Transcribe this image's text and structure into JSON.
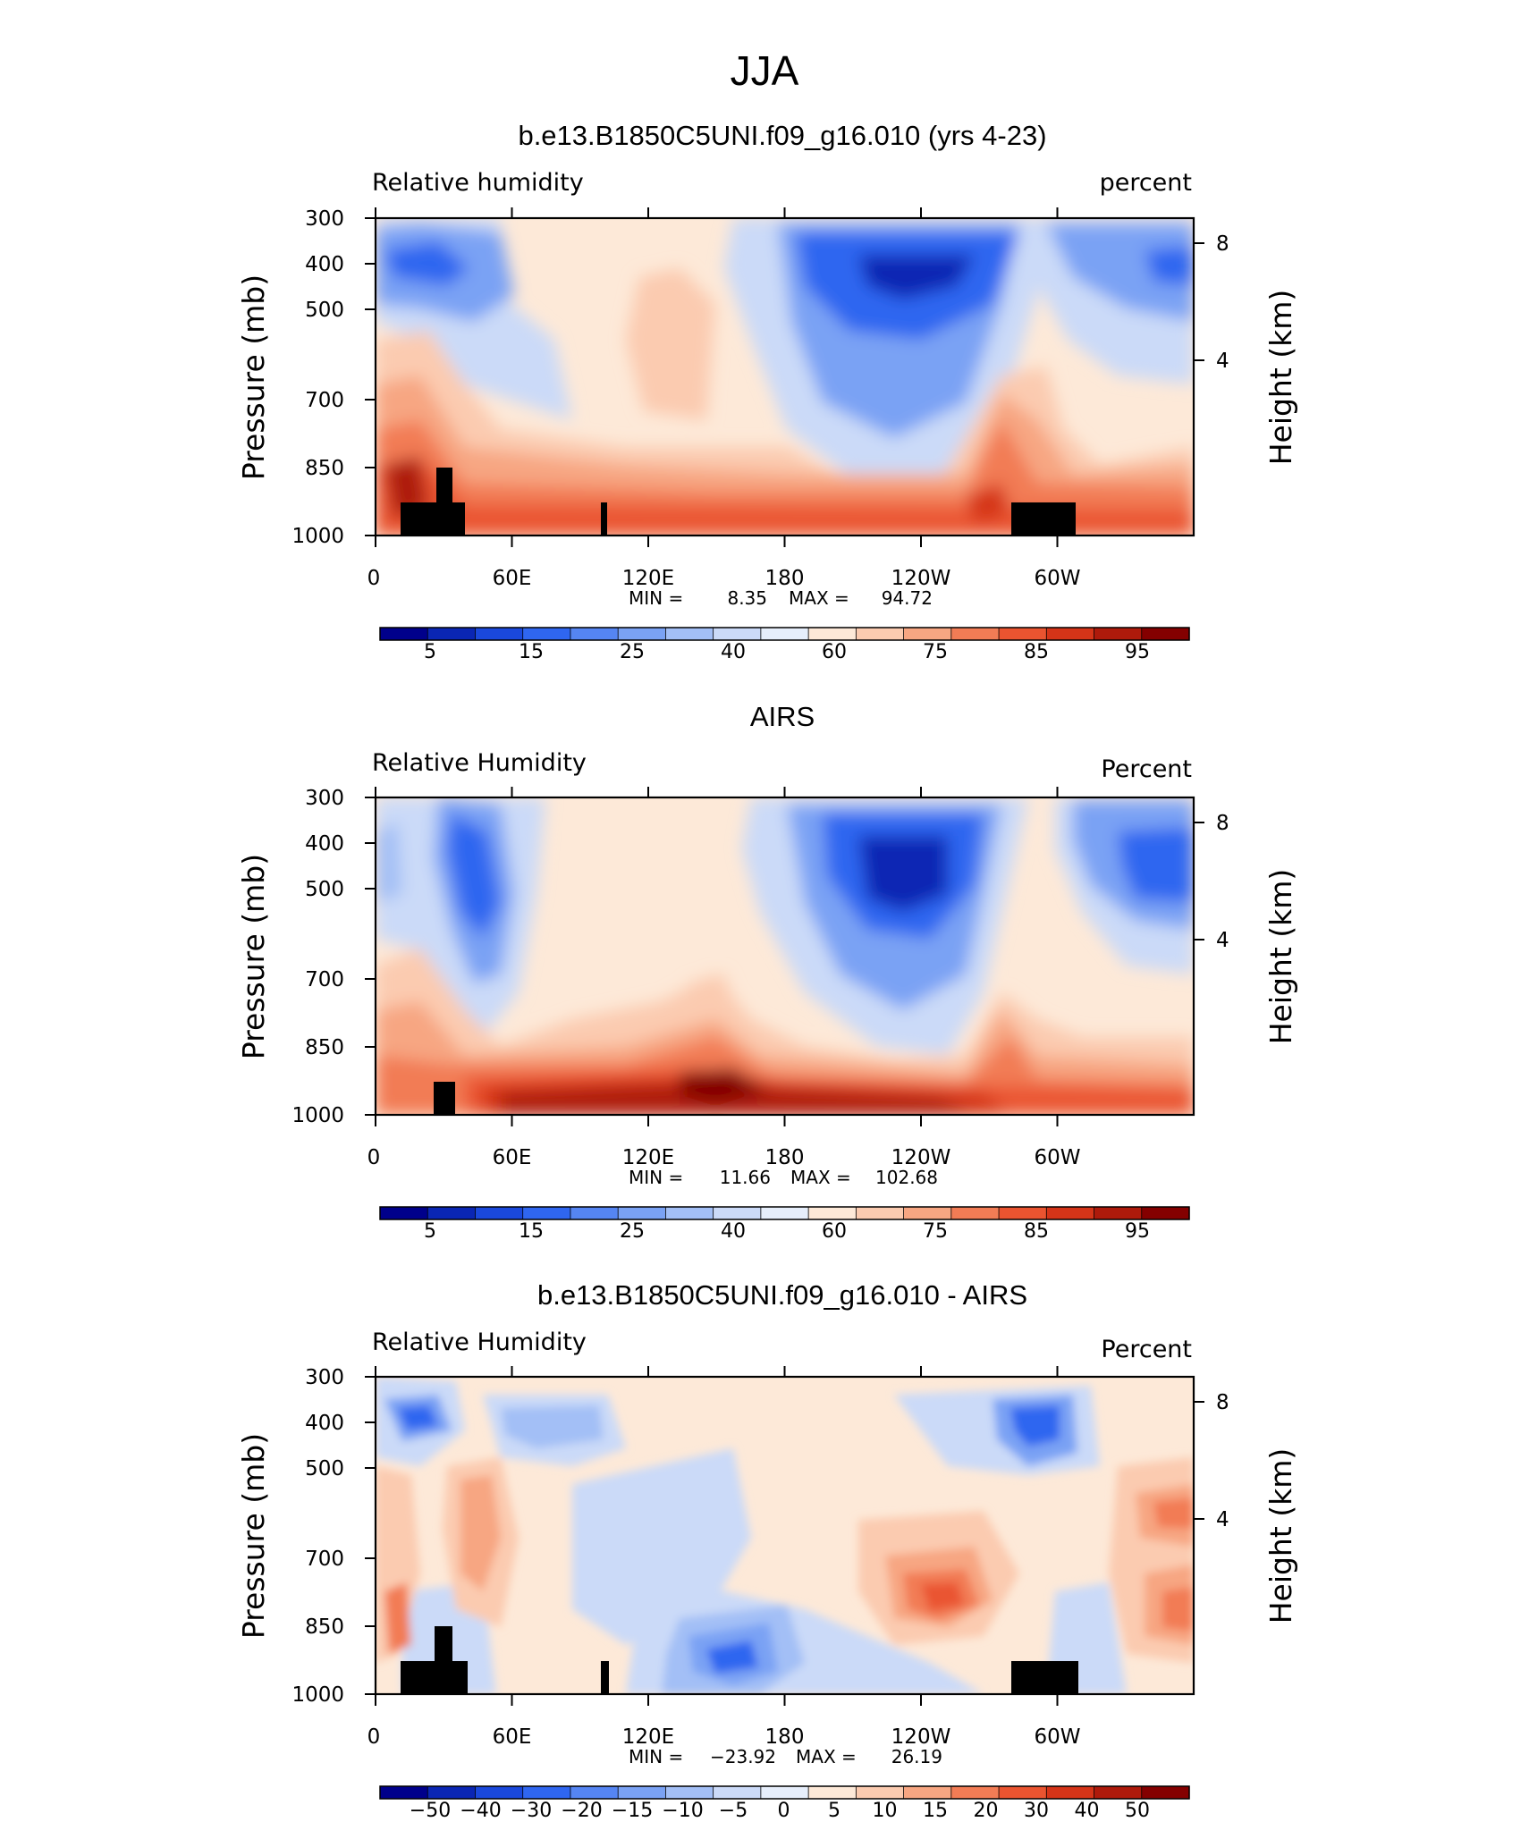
{
  "page_title": "JJA",
  "chart_data": [
    {
      "type": "heatmap",
      "title": "b.e13.B1850C5UNI.f09_g16.010 (yrs 4-23)",
      "left_label": "Relative humidity",
      "right_label": "percent",
      "ylabel": "Pressure (mb)",
      "ylabel_right": "Height (km)",
      "x_ticks": [
        "0",
        "60E",
        "120E",
        "180",
        "120W",
        "60W"
      ],
      "y_ticks": [
        "300",
        "400",
        "500",
        "700",
        "850",
        "1000"
      ],
      "y_ticks_right": [
        "8",
        "4"
      ],
      "stats": {
        "min_label": "MIN =",
        "min": "8.35",
        "max_label": "MAX =",
        "max": "94.72"
      },
      "colorbar": {
        "labels": [
          "5",
          "15",
          "25",
          "40",
          "60",
          "75",
          "85",
          "95"
        ]
      }
    },
    {
      "type": "heatmap",
      "title": "AIRS",
      "left_label": "Relative Humidity",
      "right_label": "Percent",
      "ylabel": "Pressure (mb)",
      "ylabel_right": "Height (km)",
      "x_ticks": [
        "0",
        "60E",
        "120E",
        "180",
        "120W",
        "60W"
      ],
      "y_ticks": [
        "300",
        "400",
        "500",
        "700",
        "850",
        "1000"
      ],
      "y_ticks_right": [
        "8",
        "4"
      ],
      "stats": {
        "min_label": "MIN =",
        "min": "11.66",
        "max_label": "MAX =",
        "max": "102.68"
      },
      "colorbar": {
        "labels": [
          "5",
          "15",
          "25",
          "40",
          "60",
          "75",
          "85",
          "95"
        ]
      }
    },
    {
      "type": "heatmap",
      "title": "b.e13.B1850C5UNI.f09_g16.010 - AIRS",
      "left_label": "Relative Humidity",
      "right_label": "Percent",
      "ylabel": "Pressure (mb)",
      "ylabel_right": "Height (km)",
      "x_ticks": [
        "0",
        "60E",
        "120E",
        "180",
        "120W",
        "60W"
      ],
      "y_ticks": [
        "300",
        "400",
        "500",
        "700",
        "850",
        "1000"
      ],
      "y_ticks_right": [
        "8",
        "4"
      ],
      "stats": {
        "min_label": "MIN =",
        "min": "−23.92",
        "max_label": "MAX =",
        "max": "26.19"
      },
      "colorbar": {
        "labels": [
          "−50",
          "−40",
          "−30",
          "−20",
          "−15",
          "−10",
          "−5",
          "0",
          "5",
          "10",
          "15",
          "20",
          "30",
          "40",
          "50"
        ]
      }
    }
  ],
  "palette": [
    "#00008b",
    "#0a26b4",
    "#1a48dc",
    "#2f66f0",
    "#5585f3",
    "#7aa2f4",
    "#a3bff6",
    "#cbdaf8",
    "#e6eefb",
    "#fde9d8",
    "#fbcbb0",
    "#f7a682",
    "#f27c55",
    "#ea5430",
    "#d53418",
    "#ae1a0b",
    "#840000"
  ]
}
